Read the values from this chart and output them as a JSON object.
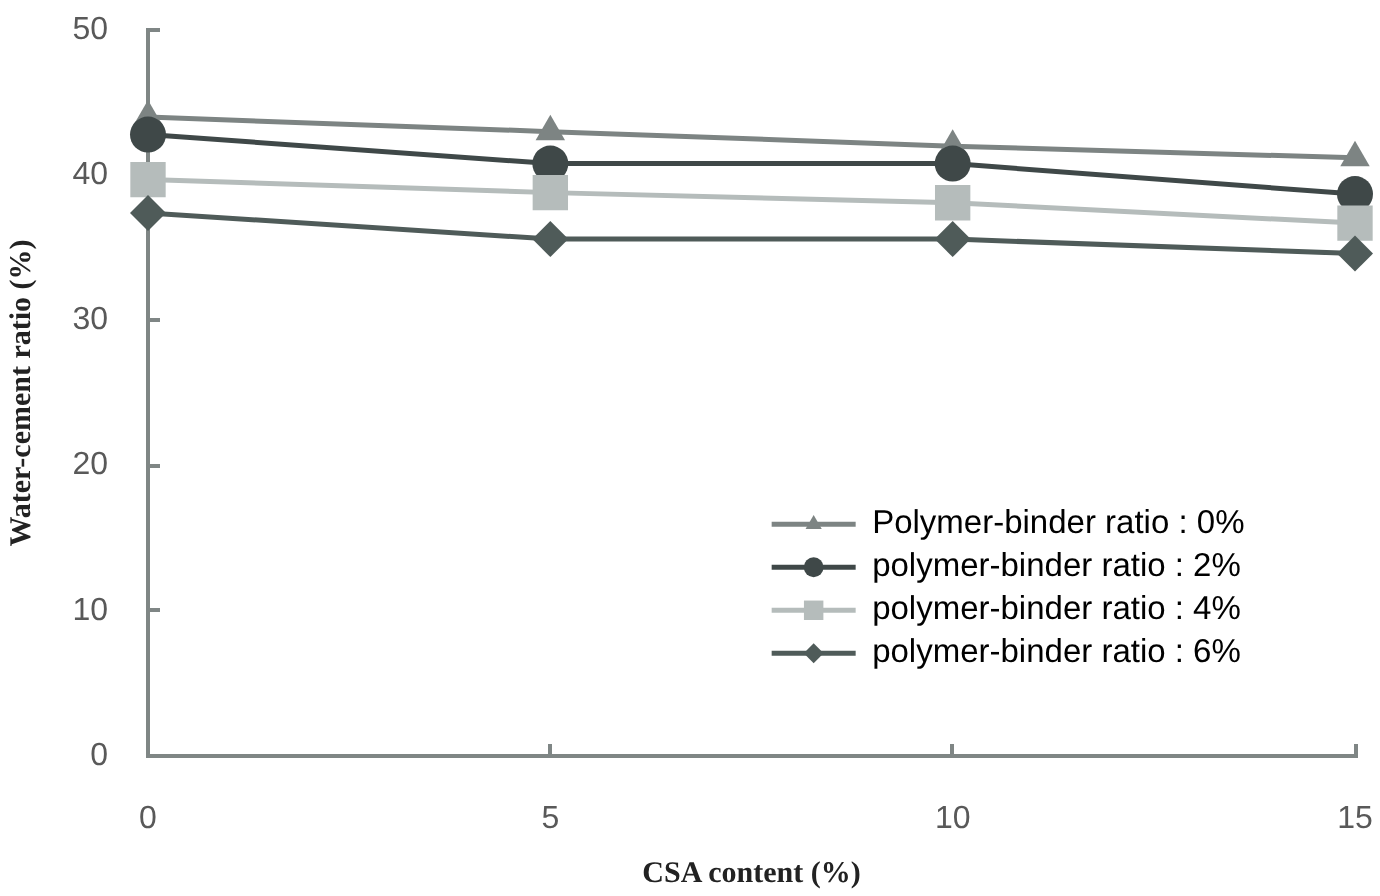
{
  "chart_data": {
    "type": "line",
    "xlabel": "CSA content (%)",
    "ylabel": "Water-cement ratio (%)",
    "x": [
      0,
      5,
      10,
      15
    ],
    "xlim": [
      0,
      15
    ],
    "xticks": [
      0,
      5,
      10,
      15
    ],
    "ylim": [
      0,
      50
    ],
    "yticks": [
      0,
      10,
      20,
      30,
      40,
      50
    ],
    "legend": "bottom right",
    "series": [
      {
        "name": "Polymer-binder ratio : 0%",
        "color": "#7d8483",
        "marker": "triangle",
        "values": [
          44.0,
          43.0,
          42.0,
          41.2
        ]
      },
      {
        "name": "polymer-binder ratio : 2%",
        "color": "#3f4848",
        "marker": "circle",
        "values": [
          42.8,
          40.8,
          40.8,
          38.7
        ]
      },
      {
        "name": "polymer-binder ratio : 4%",
        "color": "#b5bcbb",
        "marker": "square",
        "values": [
          39.7,
          38.8,
          38.1,
          36.7
        ]
      },
      {
        "name": "polymer-binder ratio : 6%",
        "color": "#4f5b59",
        "marker": "diamond",
        "values": [
          37.4,
          35.6,
          35.6,
          34.6
        ]
      }
    ]
  }
}
